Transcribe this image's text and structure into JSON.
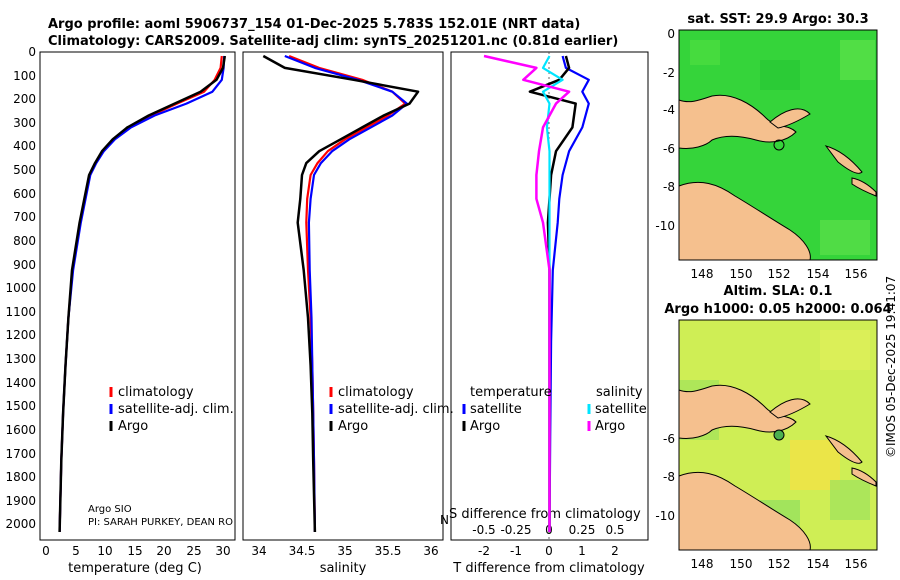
{
  "title": {
    "line1": "Argo profile: aoml 5906737_154 01-Dec-2025 5.783S 152.01E (NRT data)",
    "line2": "Climatology: CARS2009. Satellite-adj clim: synTS_20251201.nc (0.81d earlier)"
  },
  "panels": {
    "y_ticks": [
      "0",
      "100",
      "200",
      "300",
      "400",
      "500",
      "600",
      "700",
      "800",
      "900",
      "1000",
      "1100",
      "1200",
      "1300",
      "1400",
      "1500",
      "1600",
      "1700",
      "1800",
      "1900",
      "2000"
    ],
    "temperature": {
      "xlabel": "temperature (deg C)",
      "x_ticks": [
        "0",
        "5",
        "10",
        "15",
        "20",
        "25",
        "30"
      ],
      "legend": [
        "climatology",
        "satellite-adj. clim.",
        "Argo"
      ],
      "credit1": "Argo SIO",
      "credit2": "PI: SARAH PURKEY, DEAN RO"
    },
    "salinity": {
      "xlabel": "salinity",
      "x_ticks": [
        "34",
        "34.5",
        "35",
        "35.5",
        "36"
      ],
      "legend": [
        "climatology",
        "satellite-adj. clim.",
        "Argo"
      ]
    },
    "difference": {
      "xlabel": "T difference from climatology",
      "xlabel2": "S difference from climatology",
      "overflow_letter": "N",
      "x_ticks": [
        "-2",
        "-1",
        "0",
        "1",
        "2"
      ],
      "x_ticks2": [
        "-0.5",
        "-0.25",
        "0",
        "0.25",
        "0.5"
      ],
      "legend_left_title": "temperature",
      "legend_right_title": "salinity",
      "legend_left": [
        "satellite",
        "Argo"
      ],
      "legend_right": [
        "satellite",
        "Argo"
      ]
    }
  },
  "maps": {
    "sst_title": "sat. SST: 29.9 Argo: 30.3",
    "sla_title1": "Altim. SLA: 0.1",
    "sla_title2": "Argo h1000: 0.05 h2000: 0.064",
    "lat_ticks": [
      "0",
      "-2",
      "-4",
      "-6",
      "-8",
      "-10"
    ],
    "lon_ticks": [
      "148",
      "150",
      "152",
      "154",
      "156"
    ]
  },
  "footer": "©IMOS 05-Dec-2025 19:41:07",
  "colors": {
    "climatology": "#ff0000",
    "satellite": "#0000ff",
    "argo": "#000000",
    "sal_satellite": "#00e5ff",
    "sal_argo": "#ff00ff",
    "land": "#f5c08e",
    "sst_fill": "#35d43a",
    "sla_fill": "#cfee55"
  },
  "chart_data": [
    {
      "type": "line",
      "panel": "temperature",
      "xlabel": "temperature (deg C)",
      "ylabel": "depth",
      "xlim": [
        -1,
        32
      ],
      "ylim": [
        2050,
        0
      ],
      "series": [
        {
          "name": "climatology",
          "x": [
            29.8,
            29.6,
            28.6,
            26.8,
            22.2,
            17.8,
            14.0,
            11.4,
            9.6,
            8.4,
            7.4,
            5.8,
            4.5,
            3.8,
            3.3,
            2.9,
            2.6,
            2.3
          ],
          "y": [
            0,
            50,
            100,
            150,
            200,
            250,
            300,
            350,
            400,
            450,
            500,
            700,
            900,
            1100,
            1300,
            1500,
            1700,
            2000
          ]
        },
        {
          "name": "satellite-adj. clim.",
          "x": [
            30.2,
            30.1,
            29.8,
            28.2,
            23.8,
            18.4,
            14.4,
            11.7,
            9.8,
            8.5,
            7.5,
            5.9,
            4.6,
            3.8,
            3.3,
            2.9,
            2.6,
            2.3
          ],
          "y": [
            0,
            50,
            100,
            150,
            200,
            250,
            300,
            350,
            400,
            450,
            500,
            700,
            900,
            1100,
            1300,
            1500,
            1700,
            2000
          ]
        },
        {
          "name": "Argo",
          "x": [
            30.3,
            30.0,
            28.9,
            26.2,
            21.8,
            17.4,
            13.8,
            11.3,
            9.5,
            8.3,
            7.3,
            5.7,
            4.4,
            3.8,
            3.3,
            2.9,
            2.6,
            2.3
          ],
          "y": [
            0,
            50,
            100,
            150,
            200,
            250,
            300,
            350,
            400,
            450,
            500,
            700,
            900,
            1100,
            1300,
            1500,
            1700,
            2000
          ]
        }
      ]
    },
    {
      "type": "line",
      "panel": "salinity",
      "xlabel": "salinity",
      "ylabel": "depth",
      "xlim": [
        33.85,
        36.1
      ],
      "ylim": [
        2050,
        0
      ],
      "series": [
        {
          "name": "climatology",
          "x": [
            34.35,
            34.7,
            35.2,
            35.55,
            35.7,
            35.5,
            35.25,
            35.0,
            34.8,
            34.68,
            34.6,
            34.56,
            34.55,
            34.57,
            34.6,
            34.62,
            34.63,
            34.64,
            34.65
          ],
          "y": [
            0,
            50,
            100,
            150,
            200,
            250,
            300,
            350,
            400,
            450,
            500,
            600,
            700,
            900,
            1100,
            1300,
            1500,
            1700,
            2000
          ]
        },
        {
          "name": "satellite-adj. clim.",
          "x": [
            34.3,
            34.65,
            35.15,
            35.55,
            35.72,
            35.55,
            35.3,
            35.05,
            34.85,
            34.72,
            34.64,
            34.6,
            34.58,
            34.59,
            34.61,
            34.62,
            34.63,
            34.64,
            34.65
          ],
          "y": [
            0,
            50,
            100,
            150,
            200,
            250,
            300,
            350,
            400,
            450,
            500,
            600,
            700,
            900,
            1100,
            1300,
            1500,
            1700,
            2000
          ]
        },
        {
          "name": "Argo",
          "x": [
            34.05,
            34.3,
            35.1,
            35.85,
            35.75,
            35.45,
            35.2,
            34.95,
            34.7,
            34.55,
            34.5,
            34.48,
            34.45,
            34.52,
            34.57,
            34.6,
            34.62,
            34.63,
            34.65
          ],
          "y": [
            0,
            50,
            100,
            150,
            200,
            250,
            300,
            350,
            400,
            450,
            500,
            600,
            700,
            900,
            1100,
            1300,
            1500,
            1700,
            2000
          ]
        }
      ]
    },
    {
      "type": "line",
      "panel": "difference",
      "xlabel": "T difference from climatology",
      "xlabel2": "S difference from climatology",
      "xlim": [
        -2.9,
        2.9
      ],
      "ylim": [
        2050,
        0
      ],
      "series": [
        {
          "name": "temperature satellite",
          "x": [
            0.4,
            0.5,
            1.2,
            1.0,
            1.2,
            1.0,
            0.6,
            0.4,
            0.3,
            0.25,
            0.1,
            0.05,
            0.02,
            0.0
          ],
          "y": [
            0,
            50,
            100,
            150,
            200,
            300,
            400,
            500,
            600,
            700,
            900,
            1200,
            1600,
            2000
          ]
        },
        {
          "name": "temperature Argo",
          "x": [
            0.5,
            0.6,
            0.3,
            -0.6,
            0.8,
            0.7,
            0.2,
            0.05,
            0.0,
            -0.05,
            0.0,
            0.0,
            0.0,
            0.0
          ],
          "y": [
            0,
            50,
            100,
            150,
            200,
            300,
            400,
            500,
            600,
            700,
            900,
            1200,
            1600,
            2000
          ]
        },
        {
          "name": "salinity satellite",
          "x": [
            0.0,
            -0.05,
            0.1,
            -0.05,
            0.0,
            -0.02,
            0.0,
            0.0,
            0.0,
            0.0,
            0.0,
            0.0,
            0.0,
            0.0
          ],
          "y": [
            0,
            50,
            100,
            150,
            200,
            300,
            400,
            500,
            600,
            700,
            900,
            1200,
            1600,
            2000
          ]
        },
        {
          "name": "salinity Argo",
          "x": [
            -0.5,
            -0.1,
            -0.2,
            0.15,
            0.05,
            -0.05,
            -0.08,
            -0.1,
            -0.1,
            -0.05,
            0.0,
            0.0,
            0.0,
            0.0
          ],
          "y": [
            0,
            50,
            100,
            150,
            200,
            300,
            400,
            500,
            600,
            700,
            900,
            1200,
            1600,
            2000
          ]
        }
      ]
    }
  ]
}
